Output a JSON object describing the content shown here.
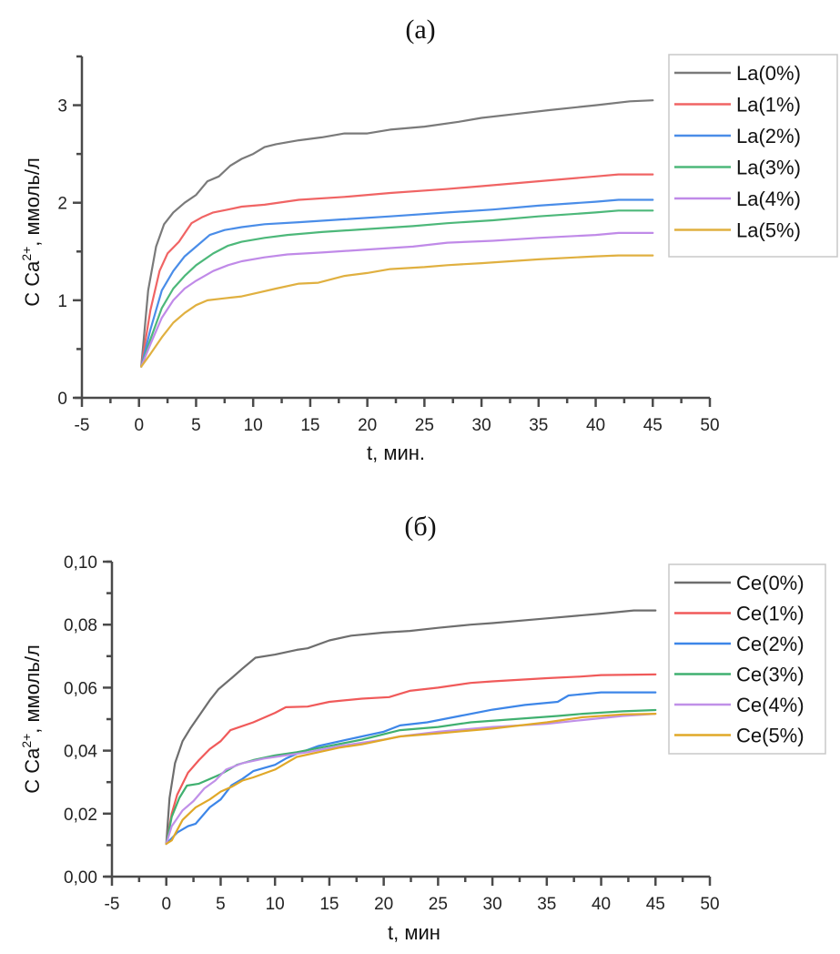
{
  "chart_data": [
    {
      "type": "line",
      "title": "(a)",
      "xlabel": "t, мин.",
      "ylabel_main": "C Ca",
      "ylabel_sup": "2+",
      "ylabel_rest": ", ммоль/л",
      "xlim": [
        -5,
        50
      ],
      "ylim": [
        0,
        3.5
      ],
      "xticks": [
        -5,
        0,
        5,
        10,
        15,
        20,
        25,
        30,
        35,
        40,
        45,
        50
      ],
      "xtick_labels": [
        "-5",
        "0",
        "5",
        "10",
        "15",
        "20",
        "25",
        "30",
        "35",
        "40",
        "45",
        "50"
      ],
      "yticks": [
        0,
        1,
        2,
        3
      ],
      "ytick_labels": [
        "0",
        "1",
        "2",
        "3"
      ],
      "y_minor_ticks": [
        0.5,
        1.5,
        2.5
      ],
      "grid": false,
      "legend_position": "top-right",
      "series": [
        {
          "name": "La(0%)",
          "color": "#7a7a7a",
          "x": [
            0.2,
            0.8,
            1.5,
            2.2,
            3,
            4,
            5,
            6,
            7,
            8,
            9,
            10,
            11,
            12,
            14,
            16,
            18,
            20,
            22,
            25,
            28,
            30,
            33,
            36,
            40,
            43,
            45
          ],
          "y": [
            0.32,
            1.1,
            1.55,
            1.78,
            1.9,
            2.0,
            2.08,
            2.22,
            2.27,
            2.38,
            2.45,
            2.5,
            2.57,
            2.6,
            2.64,
            2.67,
            2.71,
            2.71,
            2.75,
            2.78,
            2.83,
            2.87,
            2.91,
            2.95,
            3.0,
            3.04,
            3.05
          ]
        },
        {
          "name": "La(1%)",
          "color": "#f06464",
          "x": [
            0.2,
            1,
            1.8,
            2.5,
            3.5,
            4.6,
            5.5,
            6.5,
            7.8,
            9,
            11,
            14,
            18,
            22,
            26.9,
            30,
            35,
            40,
            42,
            45
          ],
          "y": [
            0.32,
            0.9,
            1.3,
            1.48,
            1.6,
            1.79,
            1.85,
            1.9,
            1.93,
            1.96,
            1.98,
            2.03,
            2.06,
            2.1,
            2.14,
            2.17,
            2.22,
            2.27,
            2.29,
            2.29
          ]
        },
        {
          "name": "La(2%)",
          "color": "#4a8de8",
          "x": [
            0.2,
            1,
            2,
            3,
            4,
            5,
            6.2,
            7.5,
            9,
            11,
            14,
            18,
            22,
            27,
            31,
            35,
            40,
            42,
            45
          ],
          "y": [
            0.32,
            0.7,
            1.1,
            1.3,
            1.45,
            1.55,
            1.67,
            1.72,
            1.75,
            1.78,
            1.8,
            1.83,
            1.86,
            1.9,
            1.93,
            1.97,
            2.01,
            2.03,
            2.03
          ]
        },
        {
          "name": "La(3%)",
          "color": "#4db87a",
          "x": [
            0.2,
            1,
            2,
            3,
            4,
            5,
            6.5,
            7.8,
            9,
            11,
            13,
            16,
            20,
            24,
            27,
            31,
            35,
            40,
            42,
            45
          ],
          "y": [
            0.32,
            0.6,
            0.92,
            1.12,
            1.25,
            1.36,
            1.48,
            1.56,
            1.6,
            1.64,
            1.67,
            1.7,
            1.73,
            1.76,
            1.79,
            1.82,
            1.86,
            1.9,
            1.92,
            1.92
          ]
        },
        {
          "name": "La(4%)",
          "color": "#c08ae8",
          "x": [
            0.2,
            1,
            2,
            3,
            4,
            5,
            6.5,
            7.8,
            9,
            11,
            13,
            16,
            20,
            24,
            27,
            31,
            35,
            40,
            42,
            45
          ],
          "y": [
            0.32,
            0.55,
            0.82,
            1.0,
            1.12,
            1.2,
            1.3,
            1.36,
            1.4,
            1.44,
            1.47,
            1.49,
            1.52,
            1.55,
            1.59,
            1.61,
            1.64,
            1.67,
            1.69,
            1.69
          ]
        },
        {
          "name": "La(5%)",
          "color": "#e0b040",
          "x": [
            0.2,
            1,
            2,
            3,
            4,
            5,
            6,
            7.5,
            9,
            10.5,
            12,
            14,
            15.7,
            18,
            20,
            22,
            25,
            27,
            30,
            35,
            40,
            42,
            45
          ],
          "y": [
            0.32,
            0.45,
            0.62,
            0.77,
            0.87,
            0.95,
            1.0,
            1.02,
            1.04,
            1.08,
            1.12,
            1.17,
            1.18,
            1.25,
            1.28,
            1.32,
            1.34,
            1.36,
            1.38,
            1.42,
            1.45,
            1.46,
            1.46
          ]
        }
      ]
    },
    {
      "type": "line",
      "title": "(б)",
      "xlabel": "t, мин",
      "ylabel_main": "C Ca",
      "ylabel_sup": "2+",
      "ylabel_rest": ", ммоль/л",
      "xlim": [
        -5,
        50
      ],
      "ylim": [
        0,
        0.1
      ],
      "xticks": [
        -5,
        0,
        5,
        10,
        15,
        20,
        25,
        30,
        35,
        40,
        45,
        50
      ],
      "xtick_labels": [
        "-5",
        "0",
        "5",
        "10",
        "15",
        "20",
        "25",
        "30",
        "35",
        "40",
        "45",
        "50"
      ],
      "yticks": [
        0,
        0.02,
        0.04,
        0.06,
        0.08,
        0.1
      ],
      "ytick_labels": [
        "0,00",
        "0,02",
        "0,04",
        "0,06",
        "0,08",
        "0,10"
      ],
      "y_minor_ticks": [
        0.01,
        0.03,
        0.05,
        0.07,
        0.09
      ],
      "grid": false,
      "legend_position": "top-right",
      "series": [
        {
          "name": "Ce(0%)",
          "color": "#6e6e6e",
          "x": [
            0,
            0.3,
            0.8,
            1.5,
            2.2,
            3,
            4,
            4.8,
            6,
            7,
            8.2,
            10,
            12,
            13,
            15,
            17,
            20,
            22.4,
            25,
            28,
            30,
            35,
            40,
            43,
            45
          ],
          "y": [
            0.0104,
            0.025,
            0.036,
            0.043,
            0.047,
            0.051,
            0.056,
            0.0595,
            0.063,
            0.066,
            0.0695,
            0.0705,
            0.072,
            0.0725,
            0.075,
            0.0765,
            0.0775,
            0.078,
            0.079,
            0.08,
            0.0805,
            0.082,
            0.0835,
            0.0845,
            0.0845
          ]
        },
        {
          "name": "Ce(1%)",
          "color": "#f05a5a",
          "x": [
            0,
            0.5,
            1,
            2,
            3,
            4,
            5,
            5.9,
            8,
            10,
            11,
            13,
            15,
            18,
            20.5,
            22.4,
            25,
            28,
            30,
            35,
            38,
            40,
            45
          ],
          "y": [
            0.0104,
            0.02,
            0.026,
            0.033,
            0.037,
            0.0405,
            0.043,
            0.0465,
            0.049,
            0.052,
            0.0538,
            0.054,
            0.0555,
            0.0565,
            0.057,
            0.059,
            0.06,
            0.0615,
            0.062,
            0.063,
            0.0635,
            0.064,
            0.0642
          ]
        },
        {
          "name": "Ce(2%)",
          "color": "#3d86e8",
          "x": [
            0,
            1,
            2,
            2.7,
            4,
            5,
            6,
            7,
            8,
            10,
            11,
            12,
            14,
            16,
            18,
            20,
            21.5,
            24,
            27,
            30,
            33,
            36,
            37,
            40,
            45
          ],
          "y": [
            0.0104,
            0.014,
            0.016,
            0.0168,
            0.022,
            0.0245,
            0.029,
            0.031,
            0.0335,
            0.0355,
            0.0375,
            0.039,
            0.0415,
            0.043,
            0.0445,
            0.046,
            0.048,
            0.049,
            0.051,
            0.053,
            0.0545,
            0.0555,
            0.0575,
            0.0585,
            0.0585
          ]
        },
        {
          "name": "Ce(3%)",
          "color": "#40b070",
          "x": [
            0,
            0.5,
            1.2,
            1.9,
            3,
            4,
            5,
            6.5,
            8,
            10,
            12,
            15,
            18,
            21.5,
            25,
            28,
            32,
            36,
            38.3,
            42,
            45
          ],
          "y": [
            0.0104,
            0.019,
            0.025,
            0.0289,
            0.0295,
            0.031,
            0.0325,
            0.0355,
            0.037,
            0.0385,
            0.0395,
            0.0415,
            0.0435,
            0.0465,
            0.0475,
            0.049,
            0.05,
            0.051,
            0.0517,
            0.0525,
            0.0529
          ]
        },
        {
          "name": "Ce(4%)",
          "color": "#c090e8",
          "x": [
            0,
            0.5,
            1.5,
            2.5,
            3.5,
            4.5,
            5.5,
            7,
            9,
            11,
            13,
            16,
            20,
            21.5,
            25,
            30,
            35,
            38.3,
            42,
            45
          ],
          "y": [
            0.0104,
            0.016,
            0.021,
            0.024,
            0.028,
            0.0305,
            0.034,
            0.036,
            0.0375,
            0.0385,
            0.0395,
            0.0415,
            0.0435,
            0.0445,
            0.046,
            0.0475,
            0.0485,
            0.0497,
            0.051,
            0.0517
          ]
        },
        {
          "name": "Ce(5%)",
          "color": "#e0a828",
          "x": [
            0,
            0.5,
            1.5,
            2.7,
            4,
            5,
            6,
            7,
            8,
            10,
            11,
            12,
            14,
            16,
            18,
            21.5,
            25,
            30,
            35,
            38.3,
            42,
            45
          ],
          "y": [
            0.0104,
            0.0115,
            0.018,
            0.022,
            0.0245,
            0.027,
            0.0285,
            0.0305,
            0.0315,
            0.034,
            0.036,
            0.038,
            0.0395,
            0.041,
            0.042,
            0.0445,
            0.0455,
            0.047,
            0.049,
            0.0506,
            0.0515,
            0.0517
          ]
        }
      ]
    }
  ]
}
